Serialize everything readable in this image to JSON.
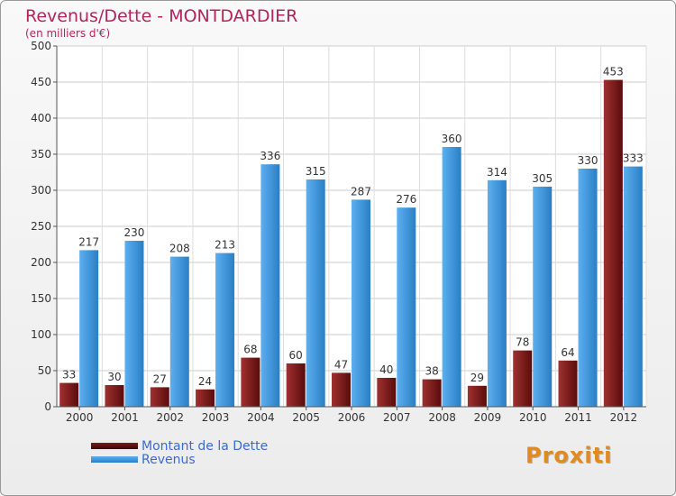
{
  "title": "Revenus/Dette - MONTDARDIER",
  "subtitle": "(en milliers d'€)",
  "logo_text": "Proxiti",
  "chart_data": {
    "type": "bar",
    "categories": [
      "2000",
      "2001",
      "2002",
      "2003",
      "2004",
      "2005",
      "2006",
      "2007",
      "2008",
      "2009",
      "2010",
      "2011",
      "2012"
    ],
    "series": [
      {
        "name": "Montant de la Dette",
        "color": "#7a1c1c",
        "values": [
          33,
          30,
          27,
          24,
          68,
          60,
          47,
          40,
          38,
          29,
          78,
          64,
          453
        ]
      },
      {
        "name": "Revenus",
        "color": "#3f96dd",
        "values": [
          217,
          230,
          208,
          213,
          336,
          315,
          287,
          276,
          360,
          314,
          305,
          330,
          333
        ]
      }
    ],
    "ylim": [
      0,
      500
    ],
    "yticks": [
      0,
      50,
      100,
      150,
      200,
      250,
      300,
      350,
      400,
      450,
      500
    ],
    "grid": true,
    "legend_position": "bottom-left"
  }
}
